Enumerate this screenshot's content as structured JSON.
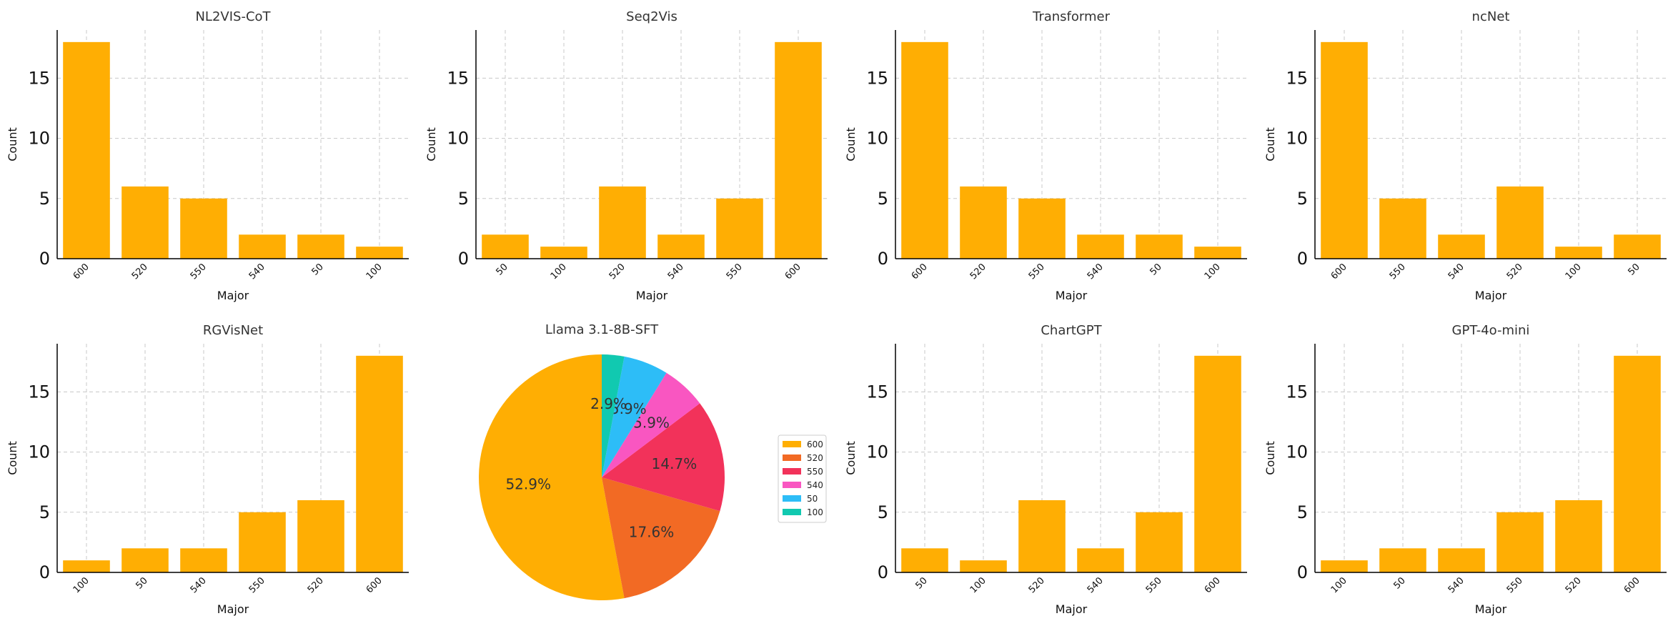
{
  "chart_data": [
    {
      "type": "bar",
      "title": "NL2VIS-CoT",
      "xlabel": "Major",
      "ylabel": "Count",
      "categories": [
        "600",
        "520",
        "550",
        "540",
        "50",
        "100"
      ],
      "values": [
        18,
        6,
        5,
        2,
        2,
        1
      ],
      "ylim": [
        0,
        19
      ],
      "yticks": [
        0,
        5,
        10,
        15
      ],
      "grid": true
    },
    {
      "type": "bar",
      "title": "Seq2Vis",
      "xlabel": "Major",
      "ylabel": "Count",
      "categories": [
        "50",
        "100",
        "520",
        "540",
        "550",
        "600"
      ],
      "values": [
        2,
        1,
        6,
        2,
        5,
        18
      ],
      "ylim": [
        0,
        19
      ],
      "yticks": [
        0,
        5,
        10,
        15
      ],
      "grid": true
    },
    {
      "type": "bar",
      "title": "Transformer",
      "xlabel": "Major",
      "ylabel": "Count",
      "categories": [
        "600",
        "520",
        "550",
        "540",
        "50",
        "100"
      ],
      "values": [
        18,
        6,
        5,
        2,
        2,
        1
      ],
      "ylim": [
        0,
        19
      ],
      "yticks": [
        0,
        5,
        10,
        15
      ],
      "grid": true
    },
    {
      "type": "bar",
      "title": "ncNet",
      "xlabel": "Major",
      "ylabel": "Count",
      "categories": [
        "600",
        "550",
        "540",
        "520",
        "100",
        "50"
      ],
      "values": [
        18,
        5,
        2,
        6,
        1,
        2
      ],
      "ylim": [
        0,
        19
      ],
      "yticks": [
        0,
        5,
        10,
        15
      ],
      "grid": true
    },
    {
      "type": "bar",
      "title": "RGVisNet",
      "xlabel": "Major",
      "ylabel": "Count",
      "categories": [
        "100",
        "50",
        "540",
        "550",
        "520",
        "600"
      ],
      "values": [
        1,
        2,
        2,
        5,
        6,
        18
      ],
      "ylim": [
        0,
        19
      ],
      "yticks": [
        0,
        5,
        10,
        15
      ],
      "grid": true
    },
    {
      "type": "pie",
      "title": "Llama 3.1-8B-SFT",
      "labels": [
        "600",
        "520",
        "550",
        "540",
        "50",
        "100"
      ],
      "values": [
        18,
        6,
        5,
        2,
        2,
        1
      ],
      "percent_labels": [
        "52.9%",
        "17.6%",
        "14.7%",
        "5.9%",
        "5.9%",
        "2.9%"
      ],
      "colors": [
        "#FFAE03",
        "#F26A24",
        "#F2325A",
        "#F956C1",
        "#2DBDF7",
        "#11C9B0"
      ],
      "legend": "right"
    },
    {
      "type": "bar",
      "title": "ChartGPT",
      "xlabel": "Major",
      "ylabel": "Count",
      "categories": [
        "50",
        "100",
        "520",
        "540",
        "550",
        "600"
      ],
      "values": [
        2,
        1,
        6,
        2,
        5,
        18
      ],
      "ylim": [
        0,
        19
      ],
      "yticks": [
        0,
        5,
        10,
        15
      ],
      "grid": true
    },
    {
      "type": "bar",
      "title": "GPT-4o-mini",
      "xlabel": "Major",
      "ylabel": "Count",
      "categories": [
        "100",
        "50",
        "540",
        "550",
        "520",
        "600"
      ],
      "values": [
        1,
        2,
        2,
        5,
        6,
        18
      ],
      "ylim": [
        0,
        19
      ],
      "yticks": [
        0,
        5,
        10,
        15
      ],
      "grid": true
    }
  ],
  "colors": {
    "bar": "#FFAE03",
    "grid": "#C8C8C8",
    "axis": "#000000"
  }
}
